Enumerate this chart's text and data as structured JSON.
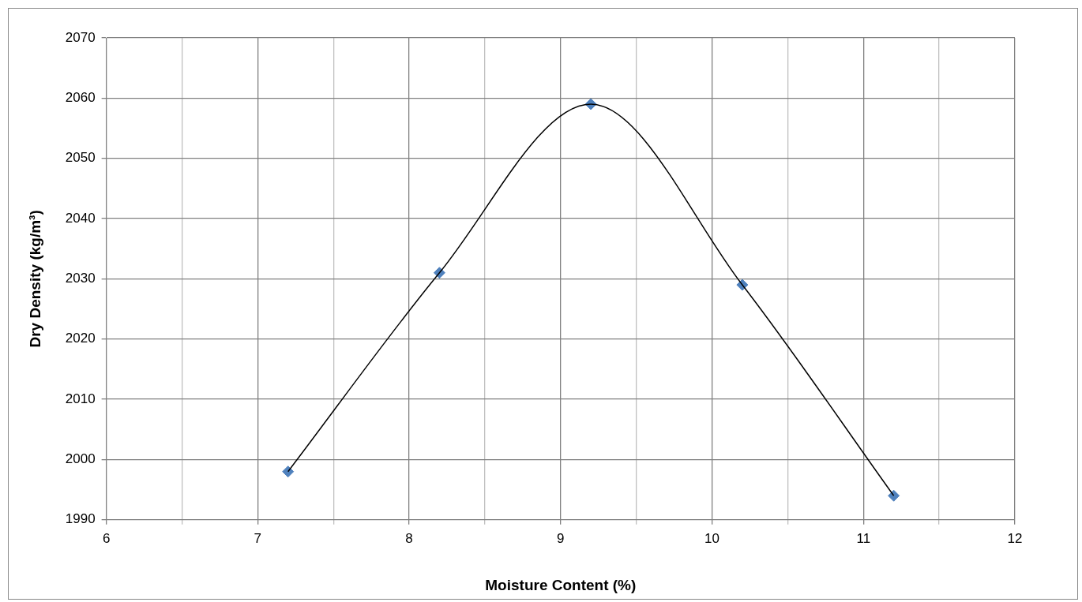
{
  "chart_data": {
    "type": "scatter",
    "xlabel": "Moisture Content (%)",
    "ylabel": "Dry Density (kg/m³)",
    "xlim": [
      6,
      12
    ],
    "xticks": [
      6,
      {
        "value": 6.5,
        "label": null
      },
      7,
      {
        "value": 7.5,
        "label": null
      },
      8,
      {
        "value": 8.5,
        "label": null
      },
      9,
      {
        "value": 9.5,
        "label": null
      },
      10,
      {
        "value": 10.5,
        "label": null
      },
      11,
      {
        "value": 11.5,
        "label": null
      },
      12
    ],
    "ylim": [
      1990,
      2070
    ],
    "yticks": [
      1990,
      2000,
      2010,
      2020,
      2030,
      2040,
      2050,
      2060,
      2070
    ],
    "grid": true,
    "legend": false,
    "series": [
      {
        "type": "line",
        "color": "#000000",
        "marker": "none",
        "line_style": "solid",
        "x": [
          7.2,
          8.2,
          9.2,
          10.2,
          11.2
        ],
        "values": [
          1998,
          2031,
          2059,
          2029,
          1994
        ]
      },
      {
        "color": "#4f81bd",
        "marker": "diamond",
        "x": [
          7.2,
          8.2,
          9.2,
          10.2,
          11.2
        ],
        "values": [
          1998,
          2031,
          2059,
          2029,
          1994
        ]
      }
    ]
  }
}
